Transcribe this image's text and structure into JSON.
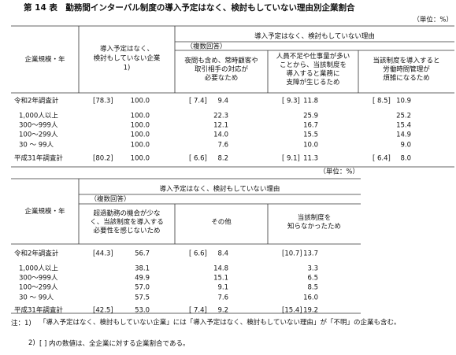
{
  "title": "第 14 表　勤務間インターバル制度の導入予定はなく、検討もしていない理由別企業割合",
  "tables": [
    {
      "unit": "（単位：%）",
      "row_header": "企業規模・年",
      "lead_column": {
        "lines": [
          "導入予定はなく、",
          "検討もしていない企業",
          "1)"
        ]
      },
      "group_header": "導入予定はなく、検討もしていない理由",
      "group_note": "（複数回答）",
      "columns": [
        {
          "lines": [
            "夜間も含め、常時顧客や",
            "取引相手の対応が",
            "必要なため"
          ]
        },
        {
          "lines": [
            "人員不足や仕事量が多い",
            "ことから、当該制度を",
            "導入すると業務に",
            "支障が生じるため"
          ]
        },
        {
          "lines": [
            "当該制度を導入すると",
            "労働時間管理が",
            "煩雑になるため"
          ]
        }
      ],
      "rows": [
        {
          "label": "令和2年調査計",
          "cells": [
            {
              "share": "[78.3]",
              "value": "100.0"
            },
            {
              "share": "[ 7.4]",
              "value": "9.4"
            },
            {
              "share": "[ 9.3]",
              "value": "11.8"
            },
            {
              "share": "[ 8.5]",
              "value": "10.9"
            }
          ]
        },
        {
          "label": "1,000人以上",
          "cells": [
            {
              "value": "100.0"
            },
            {
              "value": "22.3"
            },
            {
              "value": "25.9"
            },
            {
              "value": "25.2"
            }
          ]
        },
        {
          "label": "300～999人",
          "cells": [
            {
              "value": "100.0"
            },
            {
              "value": "12.1"
            },
            {
              "value": "16.7"
            },
            {
              "value": "15.4"
            }
          ]
        },
        {
          "label": "100～299人",
          "cells": [
            {
              "value": "100.0"
            },
            {
              "value": "14.0"
            },
            {
              "value": "15.5"
            },
            {
              "value": "14.9"
            }
          ]
        },
        {
          "label": "30 ～ 99人",
          "cells": [
            {
              "value": "100.0"
            },
            {
              "value": "7.6"
            },
            {
              "value": "10.0"
            },
            {
              "value": "9.0"
            }
          ]
        },
        {
          "label": "平成31年調査計",
          "cells": [
            {
              "share": "[80.2]",
              "value": "100.0"
            },
            {
              "share": "[ 6.6]",
              "value": "8.2"
            },
            {
              "share": "[ 9.1]",
              "value": "11.3"
            },
            {
              "share": "[ 6.4]",
              "value": "8.0"
            }
          ]
        }
      ]
    },
    {
      "unit": "（単位：%）",
      "row_header": "企業規模・年",
      "group_header": "導入予定はなく、検討もしていない理由",
      "group_note": "（複数回答）",
      "columns": [
        {
          "lines": [
            "超過勤務の機会が少な",
            "く、当該制度を導入する",
            "必要性を感じないため"
          ]
        },
        {
          "lines": [
            "その他"
          ]
        },
        {
          "lines": [
            "当該制度を",
            "知らなかったため"
          ]
        }
      ],
      "rows": [
        {
          "label": "令和2年調査計",
          "cells": [
            {
              "share": "[44.3]",
              "value": "56.7"
            },
            {
              "share": "[ 6.6]",
              "value": "8.4"
            },
            {
              "share": "[10.7]",
              "value": "13.7"
            }
          ]
        },
        {
          "label": "1,000人以上",
          "cells": [
            {
              "value": "38.1"
            },
            {
              "value": "14.8"
            },
            {
              "value": "3.3"
            }
          ]
        },
        {
          "label": "300～999人",
          "cells": [
            {
              "value": "49.9"
            },
            {
              "value": "15.1"
            },
            {
              "value": "6.5"
            }
          ]
        },
        {
          "label": "100～299人",
          "cells": [
            {
              "value": "57.0"
            },
            {
              "value": "9.1"
            },
            {
              "value": "8.5"
            }
          ]
        },
        {
          "label": "30 ～ 99人",
          "cells": [
            {
              "value": "57.5"
            },
            {
              "value": "7.6"
            },
            {
              "value": "16.0"
            }
          ]
        },
        {
          "label": "平成31年調査計",
          "cells": [
            {
              "share": "[42.5]",
              "value": "53.0"
            },
            {
              "share": "[ 7.4]",
              "value": "9.2"
            },
            {
              "share": "[15.4]",
              "value": "19.2"
            }
          ]
        }
      ]
    }
  ],
  "notes": [
    {
      "label": "注：1)",
      "text": "「導入予定はなく、検討もしていない企業」には「導入予定はなく、検討もしていない理由」が「不明」の企業も含む。"
    },
    {
      "label": "2)",
      "text": "[ ] 内の数値は、全企業に対する企業割合である。"
    }
  ]
}
